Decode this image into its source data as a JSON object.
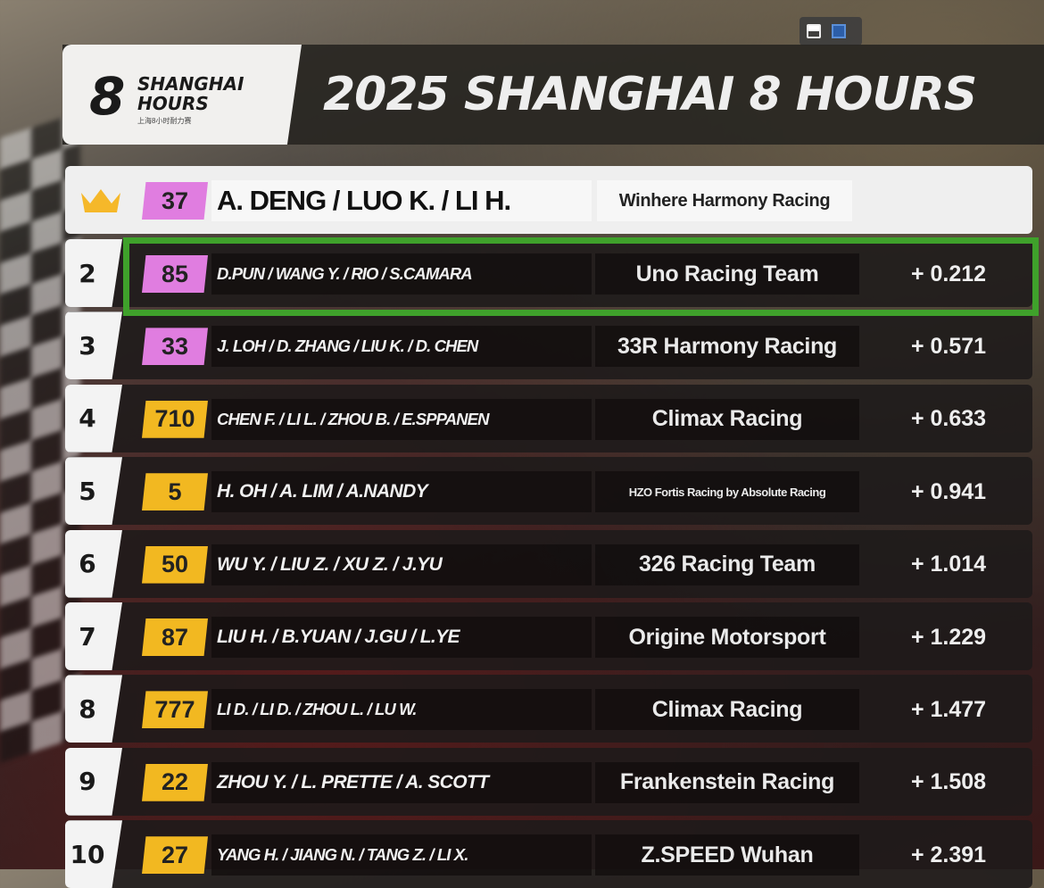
{
  "header": {
    "logo_text": [
      "8",
      "SHANGHAI",
      "HOURS",
      "上海8小时耐力赛"
    ],
    "title": "2025 SHANGHAI 8 HOURS"
  },
  "colors": {
    "pink_class": "#e07de0",
    "yellow_class": "#f2b821",
    "highlight": "#3fa12b"
  },
  "leader_icon": "crown-icon",
  "standings": [
    {
      "pos": "1",
      "num": "37",
      "cls": "pink",
      "drivers": "A. DENG / LUO K. / LI H.",
      "team": "Winhere Harmony Racing",
      "gap": ""
    },
    {
      "pos": "2",
      "num": "85",
      "cls": "pink",
      "drivers": "D.PUN / WANG Y. / RIO /  S.CAMARA",
      "team": "Uno Racing Team",
      "gap": "+ 0.212",
      "highlighted": true
    },
    {
      "pos": "3",
      "num": "33",
      "cls": "pink",
      "drivers": "J. LOH / D. ZHANG / LIU K. / D. CHEN",
      "team": "33R Harmony Racing",
      "gap": "+ 0.571"
    },
    {
      "pos": "4",
      "num": "710",
      "cls": "yellow",
      "drivers": "CHEN F. / LI L. / ZHOU B. / E.SPPANEN",
      "team": "Climax Racing",
      "gap": "+ 0.633"
    },
    {
      "pos": "5",
      "num": "5",
      "cls": "yellow",
      "drivers": "H. OH / A. LIM / A.NANDY",
      "team": "HZO Fortis Racing by Absolute Racing",
      "gap": "+ 0.941"
    },
    {
      "pos": "6",
      "num": "50",
      "cls": "yellow",
      "drivers": "WU Y. / LIU Z. / XU Z. / J.YU",
      "team": "326 Racing Team",
      "gap": "+ 1.014"
    },
    {
      "pos": "7",
      "num": "87",
      "cls": "yellow",
      "drivers": "LIU H. / B.YUAN / J.GU /  L.YE",
      "team": "Origine Motorsport",
      "gap": "+ 1.229"
    },
    {
      "pos": "8",
      "num": "777",
      "cls": "yellow",
      "drivers": "LI D. / LI D. / ZHOU L. / LU W.",
      "team": "Climax Racing",
      "gap": "+ 1.477"
    },
    {
      "pos": "9",
      "num": "22",
      "cls": "yellow",
      "drivers": "ZHOU Y. / L. PRETTE / A. SCOTT",
      "team": "Frankenstein Racing",
      "gap": "+ 1.508"
    },
    {
      "pos": "10",
      "num": "27",
      "cls": "yellow",
      "drivers": "YANG H. / JIANG N. / TANG Z. / LI X.",
      "team": "Z.SPEED Wuhan",
      "gap": "+ 2.391"
    }
  ]
}
